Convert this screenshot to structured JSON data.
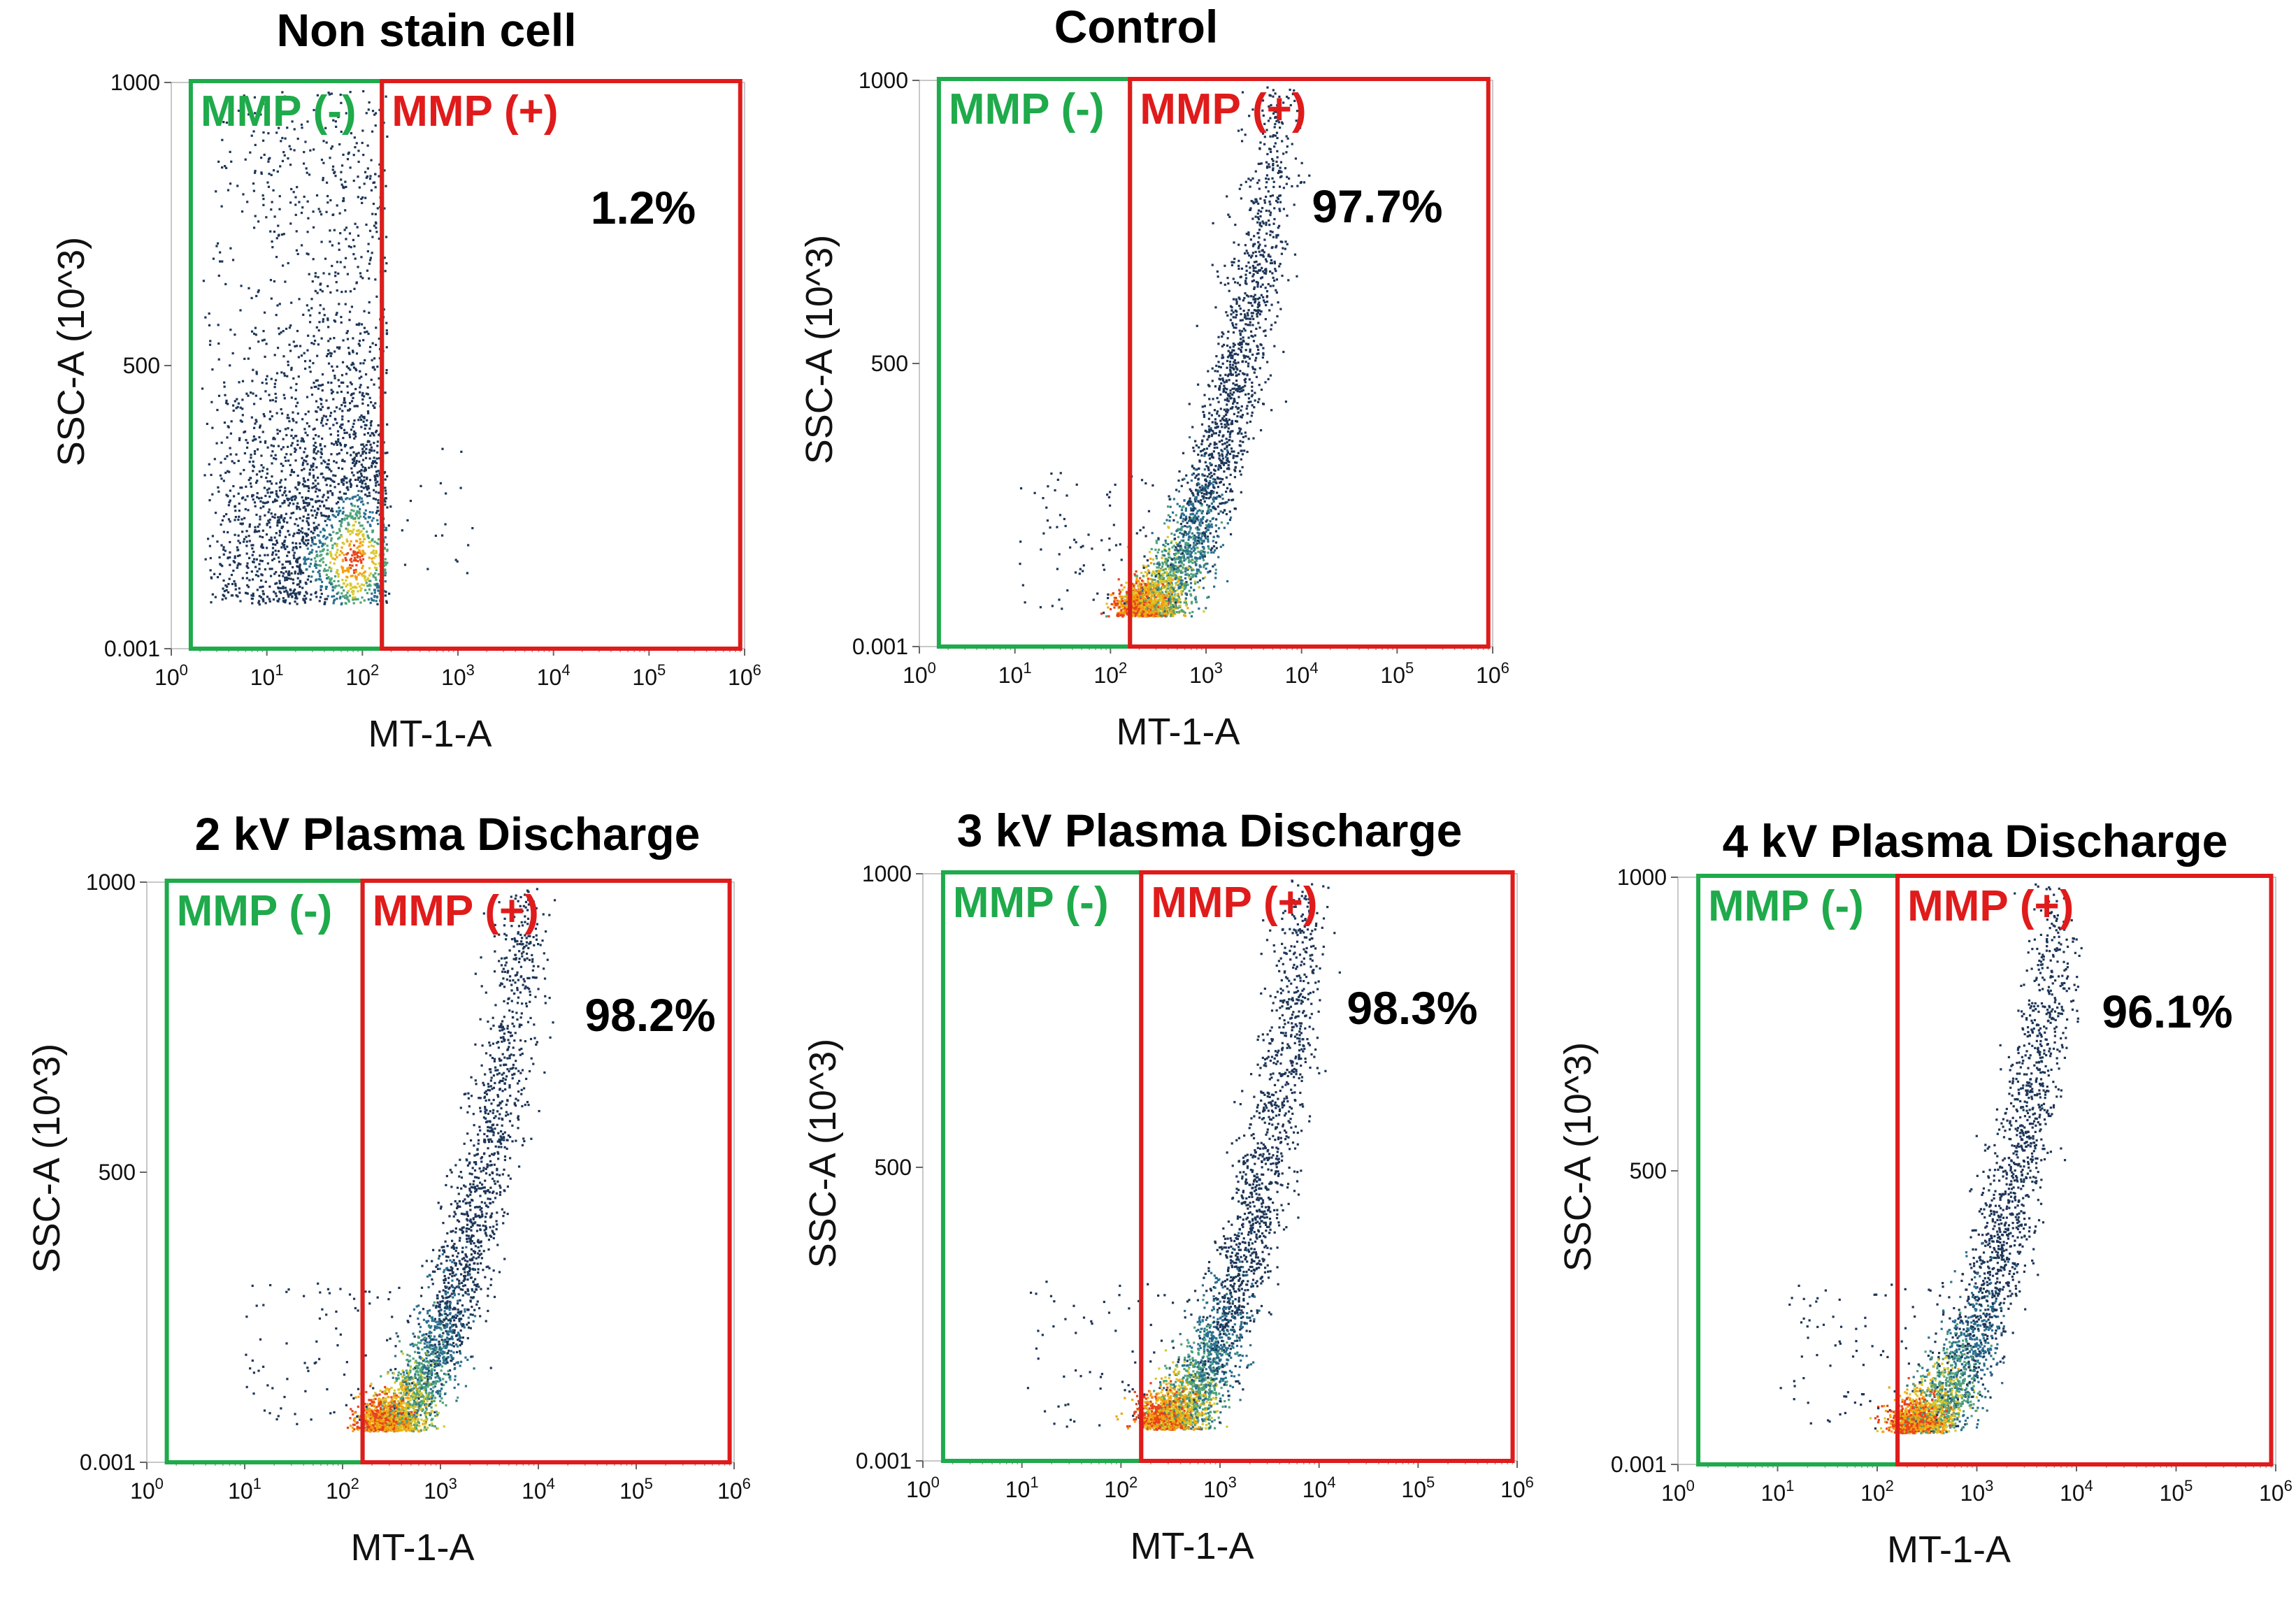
{
  "chart_data": [
    {
      "type": "scatter",
      "title": "Non stain cell",
      "xlabel": "MT-1-A",
      "ylabel": "SSC-A (10^3)",
      "x_scale": "log",
      "xlim": [
        1,
        1000000
      ],
      "ylim": [
        0.001,
        1000
      ],
      "y_ticks": [
        "1000",
        "500",
        "0.001"
      ],
      "x_ticks": [
        {
          "base": "10",
          "exp": "0"
        },
        {
          "base": "10",
          "exp": "1"
        },
        {
          "base": "10",
          "exp": "2"
        },
        {
          "base": "10",
          "exp": "3"
        },
        {
          "base": "10",
          "exp": "4"
        },
        {
          "base": "10",
          "exp": "5"
        },
        {
          "base": "10",
          "exp": "6"
        }
      ],
      "gates": [
        {
          "label": "MMP (-)",
          "color": "#1faa4b",
          "x_range": [
            1.6,
            160
          ]
        },
        {
          "label": "MMP (+)",
          "color": "#e01b1b",
          "x_range": [
            160,
            900000
          ]
        }
      ],
      "percent_label": "1.2%",
      "population": {
        "x_log_center": 1.5,
        "x_log_spread": 0.45,
        "y_center": 180,
        "y_spread": 130,
        "shape": "cloud",
        "count": 2600
      }
    },
    {
      "type": "scatter",
      "title": "Control",
      "xlabel": "MT-1-A",
      "ylabel": "SSC-A (10^3)",
      "x_scale": "log",
      "xlim": [
        1,
        1000000
      ],
      "ylim": [
        0.001,
        1000
      ],
      "y_ticks": [
        "1000",
        "500",
        "0.001"
      ],
      "x_ticks": [
        {
          "base": "10",
          "exp": "0"
        },
        {
          "base": "10",
          "exp": "1"
        },
        {
          "base": "10",
          "exp": "2"
        },
        {
          "base": "10",
          "exp": "3"
        },
        {
          "base": "10",
          "exp": "4"
        },
        {
          "base": "10",
          "exp": "5"
        },
        {
          "base": "10",
          "exp": "6"
        }
      ],
      "gates": [
        {
          "label": "MMP (-)",
          "color": "#1faa4b",
          "x_range": [
            1.6,
            160
          ]
        },
        {
          "label": "MMP (+)",
          "color": "#e01b1b",
          "x_range": [
            160,
            900000
          ]
        }
      ],
      "percent_label": "97.7%",
      "population": {
        "x_log_center": 2.7,
        "x_log_spread": 0.5,
        "y_center": 100,
        "y_spread": 60,
        "shape": "curve",
        "count": 3200
      }
    },
    {
      "type": "scatter",
      "title": "2 kV Plasma Discharge",
      "xlabel": "MT-1-A",
      "ylabel": "SSC-A (10^3)",
      "x_scale": "log",
      "xlim": [
        1,
        1000000
      ],
      "ylim": [
        0.001,
        1000
      ],
      "y_ticks": [
        "1000",
        "500",
        "0.001"
      ],
      "x_ticks": [
        {
          "base": "10",
          "exp": "0"
        },
        {
          "base": "10",
          "exp": "1"
        },
        {
          "base": "10",
          "exp": "2"
        },
        {
          "base": "10",
          "exp": "3"
        },
        {
          "base": "10",
          "exp": "4"
        },
        {
          "base": "10",
          "exp": "5"
        },
        {
          "base": "10",
          "exp": "6"
        }
      ],
      "gates": [
        {
          "label": "MMP (-)",
          "color": "#1faa4b",
          "x_range": [
            1.6,
            160
          ]
        },
        {
          "label": "MMP (+)",
          "color": "#e01b1b",
          "x_range": [
            160,
            900000
          ]
        }
      ],
      "percent_label": "98.2%",
      "population": {
        "x_log_center": 2.8,
        "x_log_spread": 0.5,
        "y_center": 100,
        "y_spread": 60,
        "shape": "curve",
        "count": 3200
      }
    },
    {
      "type": "scatter",
      "title": "3 kV Plasma Discharge",
      "xlabel": "MT-1-A",
      "ylabel": "SSC-A (10^3)",
      "x_scale": "log",
      "xlim": [
        1,
        1000000
      ],
      "ylim": [
        0.001,
        1000
      ],
      "y_ticks": [
        "1000",
        "500",
        "0.001"
      ],
      "x_ticks": [
        {
          "base": "10",
          "exp": "0"
        },
        {
          "base": "10",
          "exp": "1"
        },
        {
          "base": "10",
          "exp": "2"
        },
        {
          "base": "10",
          "exp": "3"
        },
        {
          "base": "10",
          "exp": "4"
        },
        {
          "base": "10",
          "exp": "5"
        },
        {
          "base": "10",
          "exp": "6"
        }
      ],
      "gates": [
        {
          "label": "MMP (-)",
          "color": "#1faa4b",
          "x_range": [
            1.6,
            160
          ]
        },
        {
          "label": "MMP (+)",
          "color": "#e01b1b",
          "x_range": [
            160,
            900000
          ]
        }
      ],
      "percent_label": "98.3%",
      "population": {
        "x_log_center": 2.8,
        "x_log_spread": 0.5,
        "y_center": 100,
        "y_spread": 60,
        "shape": "curve",
        "count": 3200
      }
    },
    {
      "type": "scatter",
      "title": "4 kV Plasma Discharge",
      "xlabel": "MT-1-A",
      "ylabel": "SSC-A (10^3)",
      "x_scale": "log",
      "xlim": [
        1,
        1000000
      ],
      "ylim": [
        0.001,
        1000
      ],
      "y_ticks": [
        "1000",
        "500",
        "0.001"
      ],
      "x_ticks": [
        {
          "base": "10",
          "exp": "0"
        },
        {
          "base": "10",
          "exp": "1"
        },
        {
          "base": "10",
          "exp": "2"
        },
        {
          "base": "10",
          "exp": "3"
        },
        {
          "base": "10",
          "exp": "4"
        },
        {
          "base": "10",
          "exp": "5"
        },
        {
          "base": "10",
          "exp": "6"
        }
      ],
      "gates": [
        {
          "label": "MMP (-)",
          "color": "#1faa4b",
          "x_range": [
            1.6,
            160
          ]
        },
        {
          "label": "MMP (+)",
          "color": "#e01b1b",
          "x_range": [
            160,
            900000
          ]
        }
      ],
      "percent_label": "96.1%",
      "population": {
        "x_log_center": 2.75,
        "x_log_spread": 0.5,
        "y_center": 100,
        "y_spread": 60,
        "shape": "curve",
        "count": 3200
      }
    }
  ]
}
